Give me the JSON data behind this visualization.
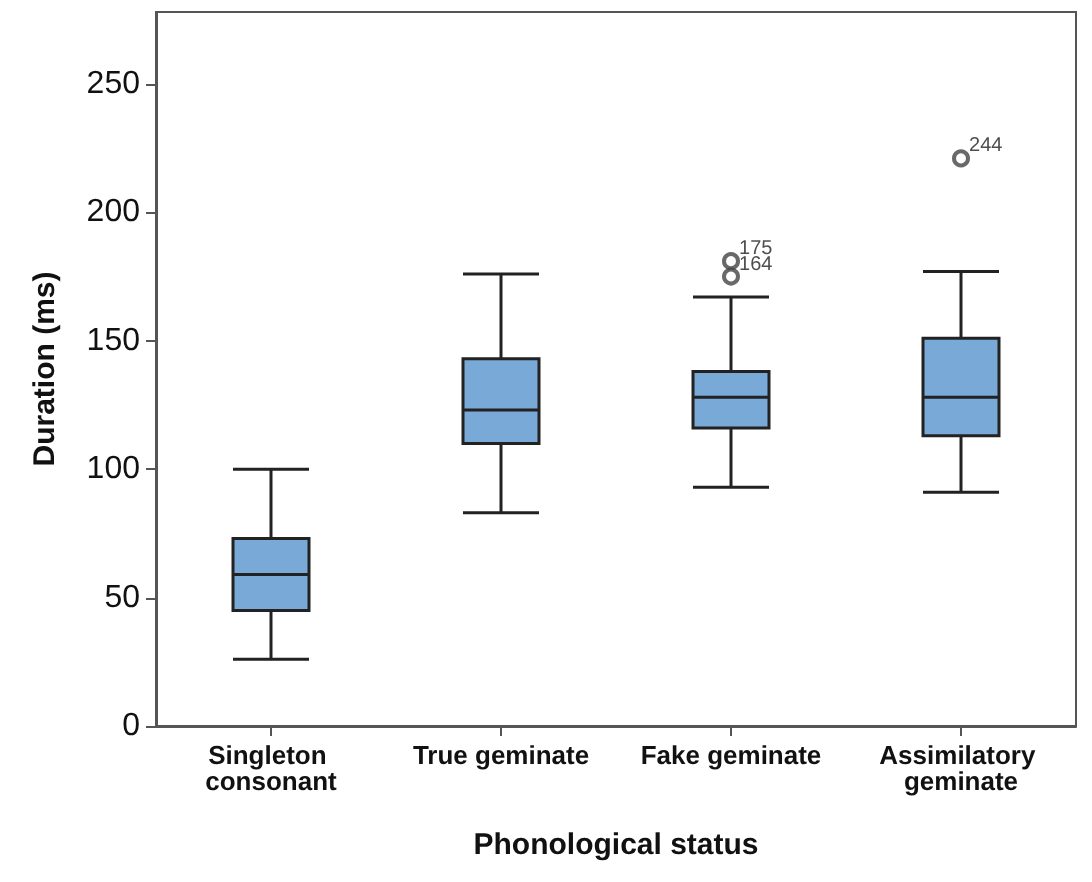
{
  "chart_data": {
    "type": "box",
    "xlabel": "Phonological status",
    "ylabel": "Duration (ms)",
    "categories": [
      "Singleton consonant",
      "True geminate",
      "Fake geminate",
      "Assimilatory geminate"
    ],
    "series": [
      {
        "color": "#79a9d6",
        "boxes": [
          {
            "low": 26,
            "q1": 45,
            "median": 59,
            "q3": 73,
            "high": 100
          },
          {
            "low": 83,
            "q1": 110,
            "median": 123,
            "q3": 143,
            "high": 176
          },
          {
            "low": 93,
            "q1": 116,
            "median": 128,
            "q3": 138,
            "high": 167,
            "outliers": [
              181,
              175
            ]
          },
          {
            "low": 91,
            "q1": 113,
            "median": 128,
            "q3": 151,
            "high": 177,
            "outliers": [
              221
            ]
          }
        ]
      }
    ],
    "annotations": [
      "175",
      "164",
      "244"
    ],
    "ylim": [
      0,
      278
    ],
    "yticks": [
      0,
      50,
      100,
      150,
      200,
      250
    ],
    "grid": false
  }
}
